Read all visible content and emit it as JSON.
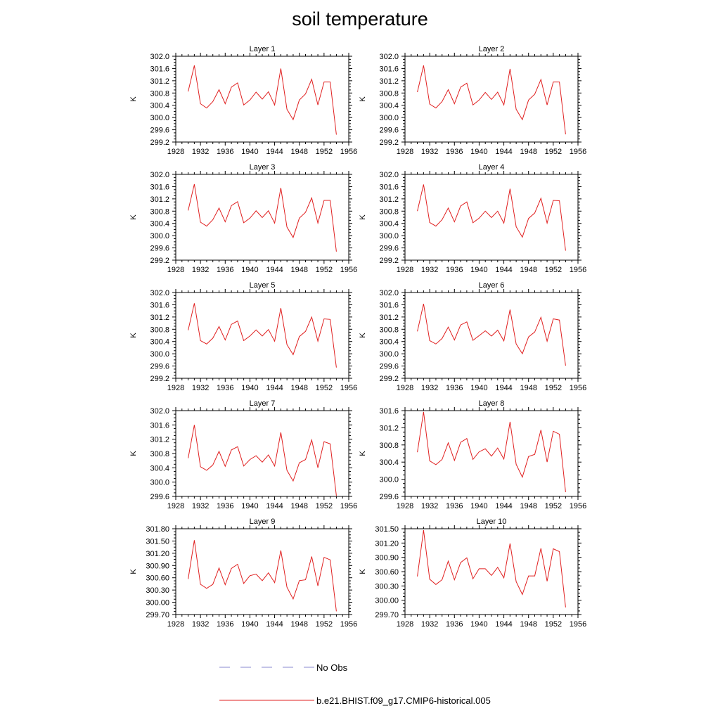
{
  "title": "soil temperature",
  "legend": {
    "entries": [
      {
        "label": "No Obs",
        "color": "#8a8ad0",
        "style": "dashed"
      },
      {
        "label": "b.e21.BHIST.f09_g17.CMIP6-historical.005",
        "color": "#e02020",
        "style": "solid"
      }
    ]
  },
  "chart_data": [
    {
      "type": "line",
      "title": "Layer 1",
      "ylabel": "K",
      "xlim": [
        1928,
        1956
      ],
      "ylim": [
        299.2,
        302.0
      ],
      "xticks": [
        "1928",
        "1932",
        "1936",
        "1940",
        "1944",
        "1948",
        "1952",
        "1956"
      ],
      "yticks": [
        "302.0",
        "301.6",
        "301.2",
        "300.8",
        "300.4",
        "300.0",
        "299.6",
        "299.2"
      ],
      "series": [
        {
          "name": "b.e21.BHIST.f09_g17.CMIP6-historical.005",
          "color": "#e02020",
          "x": [
            1930,
            1931,
            1932,
            1933,
            1934,
            1935,
            1936,
            1937,
            1938,
            1939,
            1940,
            1941,
            1942,
            1943,
            1944,
            1945,
            1946,
            1947,
            1948,
            1949,
            1950,
            1951,
            1952,
            1953,
            1954
          ],
          "y": [
            300.85,
            301.7,
            300.45,
            300.31,
            300.52,
            300.91,
            300.45,
            300.99,
            301.13,
            300.41,
            300.57,
            300.83,
            300.6,
            300.84,
            300.41,
            301.6,
            300.27,
            299.93,
            300.57,
            300.77,
            301.25,
            300.41,
            301.16,
            301.16,
            299.44
          ]
        }
      ]
    },
    {
      "type": "line",
      "title": "Layer 2",
      "ylabel": "K",
      "xlim": [
        1928,
        1956
      ],
      "ylim": [
        299.2,
        302.0
      ],
      "xticks": [
        "1928",
        "1932",
        "1936",
        "1940",
        "1944",
        "1948",
        "1952",
        "1956"
      ],
      "yticks": [
        "302.0",
        "301.6",
        "301.2",
        "300.8",
        "300.4",
        "300.0",
        "299.6",
        "299.2"
      ],
      "series": [
        {
          "name": "b.e21.BHIST.f09_g17.CMIP6-historical.005",
          "color": "#e02020",
          "x": [
            1930,
            1931,
            1932,
            1933,
            1934,
            1935,
            1936,
            1937,
            1938,
            1939,
            1940,
            1941,
            1942,
            1943,
            1944,
            1945,
            1946,
            1947,
            1948,
            1949,
            1950,
            1951,
            1952,
            1953,
            1954
          ],
          "y": [
            300.83,
            301.7,
            300.44,
            300.31,
            300.52,
            300.91,
            300.45,
            300.99,
            301.12,
            300.41,
            300.57,
            300.82,
            300.59,
            300.83,
            300.41,
            301.59,
            300.27,
            299.93,
            300.57,
            300.76,
            301.24,
            300.41,
            301.16,
            301.16,
            299.45
          ]
        }
      ]
    },
    {
      "type": "line",
      "title": "Layer 3",
      "ylabel": "K",
      "xlim": [
        1928,
        1956
      ],
      "ylim": [
        299.2,
        302.0
      ],
      "xticks": [
        "1928",
        "1932",
        "1936",
        "1940",
        "1944",
        "1948",
        "1952",
        "1956"
      ],
      "yticks": [
        "302.0",
        "301.6",
        "301.2",
        "300.8",
        "300.4",
        "300.0",
        "299.6",
        "299.2"
      ],
      "series": [
        {
          "name": "b.e21.BHIST.f09_g17.CMIP6-historical.005",
          "color": "#e02020",
          "x": [
            1930,
            1931,
            1932,
            1933,
            1934,
            1935,
            1936,
            1937,
            1938,
            1939,
            1940,
            1941,
            1942,
            1943,
            1944,
            1945,
            1946,
            1947,
            1948,
            1949,
            1950,
            1951,
            1952,
            1953,
            1954
          ],
          "y": [
            300.82,
            301.68,
            300.44,
            300.31,
            300.52,
            300.9,
            300.45,
            300.98,
            301.11,
            300.42,
            300.57,
            300.81,
            300.59,
            300.81,
            300.41,
            301.56,
            300.28,
            299.94,
            300.57,
            300.76,
            301.23,
            300.41,
            301.15,
            301.15,
            299.48
          ]
        }
      ]
    },
    {
      "type": "line",
      "title": "Layer 4",
      "ylabel": "K",
      "xlim": [
        1928,
        1956
      ],
      "ylim": [
        299.2,
        302.0
      ],
      "xticks": [
        "1928",
        "1932",
        "1936",
        "1940",
        "1944",
        "1948",
        "1952",
        "1956"
      ],
      "yticks": [
        "302.0",
        "301.6",
        "301.2",
        "300.8",
        "300.4",
        "300.0",
        "299.6",
        "299.2"
      ],
      "series": [
        {
          "name": "b.e21.BHIST.f09_g17.CMIP6-historical.005",
          "color": "#e02020",
          "x": [
            1930,
            1931,
            1932,
            1933,
            1934,
            1935,
            1936,
            1937,
            1938,
            1939,
            1940,
            1941,
            1942,
            1943,
            1944,
            1945,
            1946,
            1947,
            1948,
            1949,
            1950,
            1951,
            1952,
            1953,
            1954
          ],
          "y": [
            300.8,
            301.67,
            300.43,
            300.31,
            300.52,
            300.9,
            300.45,
            300.97,
            301.1,
            300.42,
            300.57,
            300.8,
            300.59,
            300.8,
            300.41,
            301.53,
            300.29,
            299.95,
            300.56,
            300.74,
            301.22,
            300.41,
            301.15,
            301.14,
            299.51
          ]
        }
      ]
    },
    {
      "type": "line",
      "title": "Layer 5",
      "ylabel": "K",
      "xlim": [
        1928,
        1956
      ],
      "ylim": [
        299.2,
        302.0
      ],
      "xticks": [
        "1928",
        "1932",
        "1936",
        "1940",
        "1944",
        "1948",
        "1952",
        "1956"
      ],
      "yticks": [
        "302.0",
        "301.6",
        "301.2",
        "300.8",
        "300.4",
        "300.0",
        "299.6",
        "299.2"
      ],
      "series": [
        {
          "name": "b.e21.BHIST.f09_g17.CMIP6-historical.005",
          "color": "#e02020",
          "x": [
            1930,
            1931,
            1932,
            1933,
            1934,
            1935,
            1936,
            1937,
            1938,
            1939,
            1940,
            1941,
            1942,
            1943,
            1944,
            1945,
            1946,
            1947,
            1948,
            1949,
            1950,
            1951,
            1952,
            1953,
            1954
          ],
          "y": [
            300.77,
            301.65,
            300.43,
            300.32,
            300.51,
            300.89,
            300.45,
            300.96,
            301.07,
            300.43,
            300.58,
            300.78,
            300.58,
            300.79,
            300.41,
            301.49,
            300.3,
            299.97,
            300.56,
            300.73,
            301.2,
            300.41,
            301.14,
            301.12,
            299.55
          ]
        }
      ]
    },
    {
      "type": "line",
      "title": "Layer 6",
      "ylabel": "K",
      "xlim": [
        1928,
        1956
      ],
      "ylim": [
        299.2,
        302.0
      ],
      "xticks": [
        "1928",
        "1932",
        "1936",
        "1940",
        "1944",
        "1948",
        "1952",
        "1956"
      ],
      "yticks": [
        "302.0",
        "301.6",
        "301.2",
        "300.8",
        "300.4",
        "300.0",
        "299.6",
        "299.2"
      ],
      "series": [
        {
          "name": "b.e21.BHIST.f09_g17.CMIP6-historical.005",
          "color": "#e02020",
          "x": [
            1930,
            1931,
            1932,
            1933,
            1934,
            1935,
            1936,
            1937,
            1938,
            1939,
            1940,
            1941,
            1942,
            1943,
            1944,
            1945,
            1946,
            1947,
            1948,
            1949,
            1950,
            1951,
            1952,
            1953,
            1954
          ],
          "y": [
            300.73,
            301.63,
            300.43,
            300.32,
            300.5,
            300.87,
            300.45,
            300.94,
            301.04,
            300.44,
            300.59,
            300.75,
            300.58,
            300.77,
            300.42,
            301.44,
            300.32,
            300.0,
            300.55,
            300.71,
            301.19,
            300.41,
            301.14,
            301.1,
            299.61
          ]
        }
      ]
    },
    {
      "type": "line",
      "title": "Layer 7",
      "ylabel": "K",
      "xlim": [
        1928,
        1956
      ],
      "ylim": [
        299.6,
        302.0
      ],
      "xticks": [
        "1928",
        "1932",
        "1936",
        "1940",
        "1944",
        "1948",
        "1952",
        "1956"
      ],
      "yticks": [
        "302.0",
        "301.6",
        "301.2",
        "300.8",
        "300.4",
        "300.0",
        "299.6"
      ],
      "series": [
        {
          "name": "b.e21.BHIST.f09_g17.CMIP6-historical.005",
          "color": "#e02020",
          "x": [
            1930,
            1931,
            1932,
            1933,
            1934,
            1935,
            1936,
            1937,
            1938,
            1939,
            1940,
            1941,
            1942,
            1943,
            1944,
            1945,
            1946,
            1947,
            1948,
            1949,
            1950,
            1951,
            1952,
            1953,
            1954
          ],
          "y": [
            300.67,
            301.6,
            300.43,
            300.33,
            300.48,
            300.86,
            300.44,
            300.9,
            300.99,
            300.45,
            300.63,
            300.74,
            300.56,
            300.76,
            300.45,
            301.39,
            300.33,
            300.03,
            300.54,
            300.63,
            301.18,
            300.4,
            301.13,
            301.07,
            299.62
          ]
        }
      ]
    },
    {
      "type": "line",
      "title": "Layer 8",
      "ylabel": "K",
      "xlim": [
        1928,
        1956
      ],
      "ylim": [
        299.6,
        301.6
      ],
      "xticks": [
        "1928",
        "1932",
        "1936",
        "1940",
        "1944",
        "1948",
        "1952",
        "1956"
      ],
      "yticks": [
        "301.6",
        "301.2",
        "300.8",
        "300.4",
        "300.0",
        "299.6"
      ],
      "series": [
        {
          "name": "b.e21.BHIST.f09_g17.CMIP6-historical.005",
          "color": "#e02020",
          "x": [
            1930,
            1931,
            1932,
            1933,
            1934,
            1935,
            1936,
            1937,
            1938,
            1939,
            1940,
            1941,
            1942,
            1943,
            1944,
            1945,
            1946,
            1947,
            1948,
            1949,
            1950,
            1951,
            1952,
            1953,
            1954
          ],
          "y": [
            300.63,
            301.57,
            300.43,
            300.34,
            300.46,
            300.85,
            300.44,
            300.86,
            300.95,
            300.46,
            300.64,
            300.71,
            300.54,
            300.73,
            300.47,
            301.34,
            300.35,
            300.05,
            300.53,
            300.58,
            301.15,
            300.4,
            301.12,
            301.05,
            299.7
          ]
        }
      ]
    },
    {
      "type": "line",
      "title": "Layer 9",
      "ylabel": "K",
      "xlim": [
        1928,
        1956
      ],
      "ylim": [
        299.7,
        301.8
      ],
      "xticks": [
        "1928",
        "1932",
        "1936",
        "1940",
        "1944",
        "1948",
        "1952",
        "1956"
      ],
      "yticks": [
        "301.80",
        "301.50",
        "301.20",
        "300.90",
        "300.60",
        "300.30",
        "300.00",
        "299.70"
      ],
      "series": [
        {
          "name": "b.e21.BHIST.f09_g17.CMIP6-historical.005",
          "color": "#e02020",
          "x": [
            1930,
            1931,
            1932,
            1933,
            1934,
            1935,
            1936,
            1937,
            1938,
            1939,
            1940,
            1941,
            1942,
            1943,
            1944,
            1945,
            1946,
            1947,
            1948,
            1949,
            1950,
            1951,
            1952,
            1953,
            1954
          ],
          "y": [
            300.57,
            301.52,
            300.44,
            300.34,
            300.44,
            300.84,
            300.43,
            300.83,
            300.93,
            300.46,
            300.65,
            300.69,
            300.53,
            300.72,
            300.48,
            301.27,
            300.37,
            300.08,
            300.53,
            300.55,
            301.12,
            300.4,
            301.1,
            301.04,
            299.78
          ]
        }
      ]
    },
    {
      "type": "line",
      "title": "Layer 10",
      "ylabel": "K",
      "xlim": [
        1928,
        1956
      ],
      "ylim": [
        299.7,
        301.5
      ],
      "xticks": [
        "1928",
        "1932",
        "1936",
        "1940",
        "1944",
        "1948",
        "1952",
        "1956"
      ],
      "yticks": [
        "301.50",
        "301.20",
        "300.90",
        "300.60",
        "300.30",
        "300.00",
        "299.70"
      ],
      "series": [
        {
          "name": "b.e21.BHIST.f09_g17.CMIP6-historical.005",
          "color": "#e02020",
          "x": [
            1930,
            1931,
            1932,
            1933,
            1934,
            1935,
            1936,
            1937,
            1938,
            1939,
            1940,
            1941,
            1942,
            1943,
            1944,
            1945,
            1946,
            1947,
            1948,
            1949,
            1950,
            1951,
            1952,
            1953,
            1954
          ],
          "y": [
            300.5,
            301.47,
            300.44,
            300.33,
            300.43,
            300.82,
            300.43,
            300.79,
            300.89,
            300.45,
            300.66,
            300.66,
            300.52,
            300.69,
            300.47,
            301.19,
            300.39,
            300.12,
            300.51,
            300.51,
            301.09,
            300.4,
            301.08,
            301.02,
            299.85
          ]
        }
      ]
    }
  ]
}
